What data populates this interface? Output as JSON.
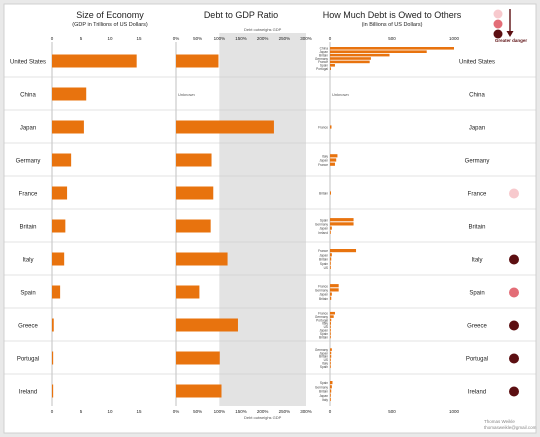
{
  "headers": {
    "economy_title": "Size of Economy",
    "economy_subtitle": "(GDP in Trillions of US Dollars)",
    "debt_title": "Debt to GDP Ratio",
    "owed_title": "How Much Debt is Owed to Others",
    "owed_subtitle": "(in Billions of US Dollars)",
    "danger_label": "Greater danger",
    "debt_band_label": "Debt outweighs GDP"
  },
  "credit": [
    "Thomas Weikle",
    "thomasweikle@gmail.com"
  ],
  "colors": {
    "bar": "#e8730e",
    "band": "#e3e3e3",
    "danger_high": "#5c0f12",
    "danger_mid": "#e36d77",
    "danger_low": "#f7c9cd",
    "rule": "#c8c8c8"
  },
  "chart_data": [
    {
      "type": "bar",
      "orientation": "horizontal",
      "title": "Size of Economy",
      "subtitle": "(GDP in Trillions of US Dollars)",
      "categories": [
        "United States",
        "China",
        "Japan",
        "Germany",
        "France",
        "Britain",
        "Italy",
        "Spain",
        "Greece",
        "Portugal",
        "Ireland"
      ],
      "values": [
        14.6,
        5.9,
        5.5,
        3.3,
        2.6,
        2.3,
        2.1,
        1.4,
        0.3,
        0.2,
        0.2
      ],
      "xlim": [
        0,
        20
      ],
      "ticks": [
        "0",
        "5",
        "10",
        "15"
      ]
    },
    {
      "type": "bar",
      "orientation": "horizontal",
      "title": "Debt to GDP Ratio",
      "categories": [
        "United States",
        "China",
        "Japan",
        "Germany",
        "France",
        "Britain",
        "Italy",
        "Spain",
        "Greece",
        "Portugal",
        "Ireland"
      ],
      "values": [
        98,
        null,
        226,
        82,
        86,
        80,
        119,
        54,
        143,
        101,
        105
      ],
      "null_label": "Unknown",
      "xlim": [
        0,
        300
      ],
      "ticks": [
        "0%",
        "50%",
        "100%",
        "150%",
        "200%",
        "250%",
        "300%"
      ],
      "band_from": 100,
      "band_label": "Debt outweighs GDP"
    },
    {
      "type": "bar",
      "orientation": "horizontal",
      "title": "How Much Debt is Owed to Others",
      "subtitle": "(in Billions of US Dollars)",
      "xlim": [
        0,
        1000
      ],
      "ticks": [
        "0",
        "500",
        "1000"
      ],
      "groups": [
        {
          "category": "United States",
          "items": [
            [
              "China",
              1000
            ],
            [
              "Japan",
              780
            ],
            [
              "Britain",
              480
            ],
            [
              "Germany",
              330
            ],
            [
              "France",
              320
            ],
            [
              "Spain",
              40
            ],
            [
              "Portugal",
              8
            ]
          ]
        },
        {
          "category": "China",
          "unknown_label": "Unknown",
          "items": []
        },
        {
          "category": "Japan",
          "items": [
            [
              "France",
              12
            ]
          ]
        },
        {
          "category": "Germany",
          "items": [
            [
              "Italy",
              60
            ],
            [
              "Japan",
              50
            ],
            [
              "France",
              40
            ]
          ]
        },
        {
          "category": "France",
          "items": [
            [
              "Britain",
              8
            ]
          ]
        },
        {
          "category": "Britain",
          "items": [
            [
              "Spain",
              190
            ],
            [
              "Germany",
              190
            ],
            [
              "Japan",
              15
            ],
            [
              "Ireland",
              5
            ]
          ]
        },
        {
          "category": "Italy",
          "items": [
            [
              "France",
              210
            ],
            [
              "Japan",
              15
            ],
            [
              "Britain",
              10
            ],
            [
              "Spain",
              5
            ],
            [
              "US",
              5
            ]
          ]
        },
        {
          "category": "Spain",
          "items": [
            [
              "France",
              70
            ],
            [
              "Germany",
              70
            ],
            [
              "Japan",
              15
            ],
            [
              "Britain",
              10
            ]
          ]
        },
        {
          "category": "Greece",
          "items": [
            [
              "France",
              40
            ],
            [
              "Germany",
              30
            ],
            [
              "Portugal",
              10
            ],
            [
              "Italy",
              8
            ],
            [
              "US",
              5
            ],
            [
              "Japan",
              5
            ],
            [
              "Spain",
              3
            ],
            [
              "Britain",
              3
            ]
          ]
        },
        {
          "category": "Portugal",
          "items": [
            [
              "Germany",
              15
            ],
            [
              "Japan",
              10
            ],
            [
              "Britain",
              10
            ],
            [
              "US",
              5
            ],
            [
              "Italy",
              5
            ],
            [
              "Spain",
              3
            ]
          ]
        },
        {
          "category": "Ireland",
          "items": [
            [
              "Spain",
              20
            ],
            [
              "Germany",
              15
            ],
            [
              "Britain",
              10
            ],
            [
              "Japan",
              5
            ],
            [
              "Italy",
              5
            ]
          ]
        }
      ]
    }
  ],
  "danger_levels": [
    "none",
    "none",
    "none",
    "none",
    "low",
    "none",
    "high",
    "mid",
    "high",
    "high",
    "high"
  ],
  "danger_legend": [
    "low",
    "mid",
    "high"
  ]
}
